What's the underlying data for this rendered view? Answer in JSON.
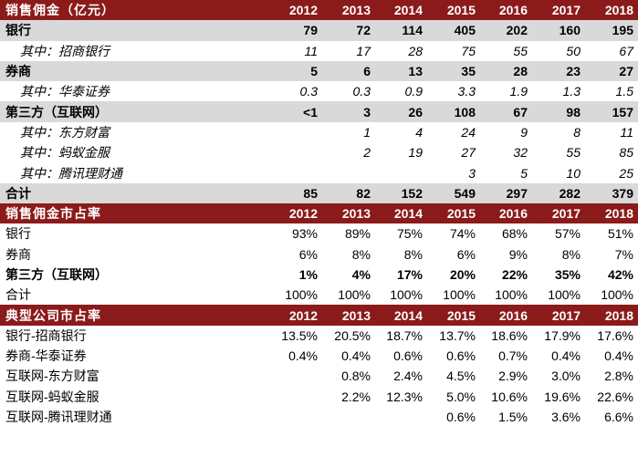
{
  "years": [
    "2012",
    "2013",
    "2014",
    "2015",
    "2016",
    "2017",
    "2018"
  ],
  "sections": [
    {
      "id": "sales-commission",
      "title": "销售佣金（亿元）",
      "rows": [
        {
          "label": "银行",
          "style": "grey",
          "values": [
            "79",
            "72",
            "114",
            "405",
            "202",
            "160",
            "195"
          ]
        },
        {
          "label": "其中：招商银行",
          "style": "sub",
          "values": [
            "11",
            "17",
            "28",
            "75",
            "55",
            "50",
            "67"
          ]
        },
        {
          "label": "券商",
          "style": "grey",
          "values": [
            "5",
            "6",
            "13",
            "35",
            "28",
            "23",
            "27"
          ]
        },
        {
          "label": "其中：华泰证券",
          "style": "sub",
          "values": [
            "0.3",
            "0.3",
            "0.9",
            "3.3",
            "1.9",
            "1.3",
            "1.5"
          ]
        },
        {
          "label": "第三方（互联网）",
          "style": "grey",
          "values": [
            "<1",
            "3",
            "26",
            "108",
            "67",
            "98",
            "157"
          ]
        },
        {
          "label": "其中：东方财富",
          "style": "sub",
          "values": [
            "",
            "1",
            "4",
            "24",
            "9",
            "8",
            "11"
          ]
        },
        {
          "label": "其中：蚂蚁金服",
          "style": "sub",
          "values": [
            "",
            "2",
            "19",
            "27",
            "32",
            "55",
            "85"
          ]
        },
        {
          "label": "其中：腾讯理财通",
          "style": "sub",
          "values": [
            "",
            "",
            "",
            "3",
            "5",
            "10",
            "25"
          ]
        },
        {
          "label": "合计",
          "style": "grey",
          "values": [
            "85",
            "82",
            "152",
            "549",
            "297",
            "282",
            "379"
          ]
        }
      ]
    },
    {
      "id": "commission-share",
      "title": "销售佣金市占率",
      "rows": [
        {
          "label": "银行",
          "style": "plain",
          "values": [
            "93%",
            "89%",
            "75%",
            "74%",
            "68%",
            "57%",
            "51%"
          ]
        },
        {
          "label": "券商",
          "style": "plain",
          "values": [
            "6%",
            "8%",
            "8%",
            "6%",
            "9%",
            "8%",
            "7%"
          ]
        },
        {
          "label": "第三方（互联网）",
          "style": "bold",
          "values": [
            "1%",
            "4%",
            "17%",
            "20%",
            "22%",
            "35%",
            "42%"
          ]
        },
        {
          "label": "合计",
          "style": "plain",
          "values": [
            "100%",
            "100%",
            "100%",
            "100%",
            "100%",
            "100%",
            "100%"
          ]
        }
      ]
    },
    {
      "id": "company-share",
      "title": "典型公司市占率",
      "rows": [
        {
          "label": "银行-招商银行",
          "style": "plain",
          "values": [
            "13.5%",
            "20.5%",
            "18.7%",
            "13.7%",
            "18.6%",
            "17.9%",
            "17.6%"
          ]
        },
        {
          "label": "券商-华泰证券",
          "style": "plain",
          "values": [
            "0.4%",
            "0.4%",
            "0.6%",
            "0.6%",
            "0.7%",
            "0.4%",
            "0.4%"
          ]
        },
        {
          "label": "互联网-东方财富",
          "style": "plain",
          "values": [
            "",
            "0.8%",
            "2.4%",
            "4.5%",
            "2.9%",
            "3.0%",
            "2.8%"
          ]
        },
        {
          "label": "互联网-蚂蚁金服",
          "style": "plain",
          "values": [
            "",
            "2.2%",
            "12.3%",
            "5.0%",
            "10.6%",
            "19.6%",
            "22.6%"
          ]
        },
        {
          "label": "互联网-腾讯理财通",
          "style": "plain",
          "values": [
            "",
            "",
            "",
            "0.6%",
            "1.5%",
            "3.6%",
            "6.6%"
          ]
        }
      ]
    }
  ]
}
